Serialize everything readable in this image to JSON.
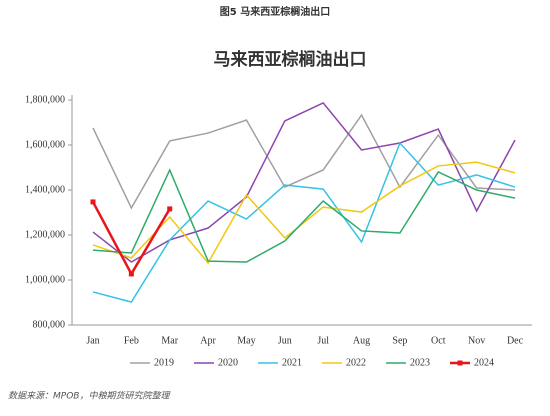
{
  "caption": "图5 马来西亚棕榈油出口",
  "source": "数据来源：MPOB，中粮期货研究院整理",
  "chart_data": {
    "type": "line",
    "title": "马来西亚棕榈油出口",
    "categories": [
      "Jan",
      "Feb",
      "Mar",
      "Apr",
      "May",
      "Jun",
      "Jul",
      "Aug",
      "Sep",
      "Oct",
      "Nov",
      "Dec"
    ],
    "ylim": [
      800000,
      1800000
    ],
    "yticks": [
      {
        "value": 800000,
        "label": "800,000"
      },
      {
        "value": 1000000,
        "label": "1,000,000"
      },
      {
        "value": 1200000,
        "label": "1,200,000"
      },
      {
        "value": 1400000,
        "label": "1,400,000"
      },
      {
        "value": 1600000,
        "label": "1,600,000"
      },
      {
        "value": 1800000,
        "label": "1,800,000"
      }
    ],
    "grid": false,
    "legend": "bottom",
    "series": [
      {
        "name": "2019",
        "color": "#a0a0a0",
        "values": [
          1676000,
          1320000,
          1618000,
          1653000,
          1711000,
          1413000,
          1489000,
          1733000,
          1413000,
          1644000,
          1409000,
          1400000
        ]
      },
      {
        "name": "2020",
        "color": "#8e44ad",
        "values": [
          1213000,
          1080000,
          1178000,
          1231000,
          1369000,
          1707000,
          1787000,
          1578000,
          1609000,
          1671000,
          1307000,
          1622000
        ]
      },
      {
        "name": "2021",
        "color": "#33c3e6",
        "values": [
          947000,
          902000,
          1178000,
          1351000,
          1271000,
          1422000,
          1404000,
          1169000,
          1609000,
          1422000,
          1467000,
          1413000
        ]
      },
      {
        "name": "2022",
        "color": "#f2c811",
        "values": [
          1156000,
          1098000,
          1280000,
          1076000,
          1378000,
          1187000,
          1324000,
          1302000,
          1418000,
          1507000,
          1524000,
          1476000
        ]
      },
      {
        "name": "2023",
        "color": "#2eaa6a",
        "values": [
          1133000,
          1120000,
          1489000,
          1084000,
          1080000,
          1173000,
          1351000,
          1218000,
          1209000,
          1480000,
          1400000,
          1364000
        ]
      },
      {
        "name": "2024",
        "color": "#e8151b",
        "markers": true,
        "values": [
          1347000,
          1027000,
          1316000,
          null,
          null,
          null,
          null,
          null,
          null,
          null,
          null,
          null
        ]
      }
    ]
  }
}
